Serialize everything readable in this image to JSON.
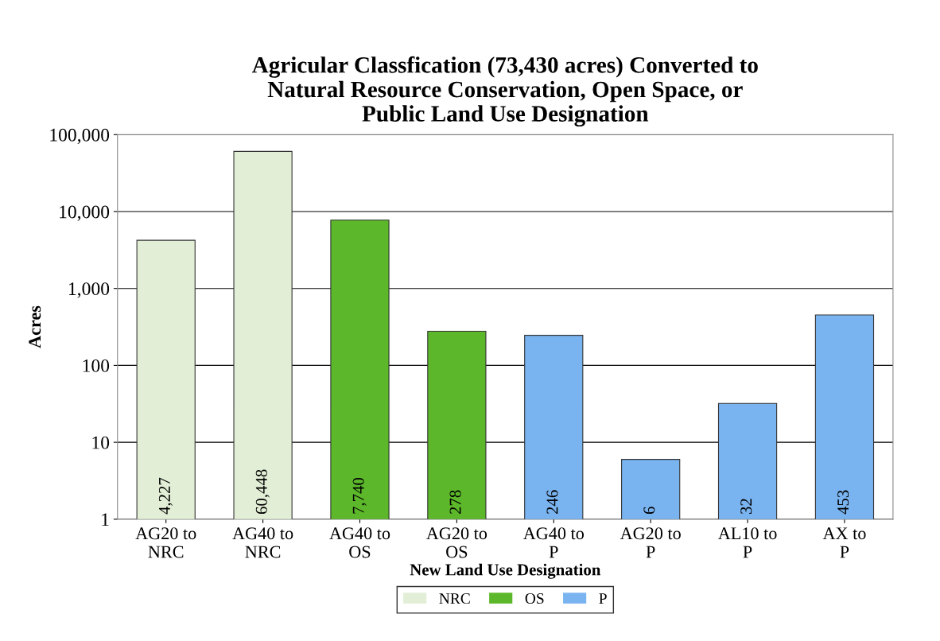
{
  "chart_data": {
    "type": "bar",
    "title": "Agricular Classfication (73,430 acres) Converted to\nNatural Resource Conservation, Open Space, or\nPublic Land Use Designation",
    "xlabel": "New Land Use Designation",
    "ylabel": "Acres",
    "categories": [
      "AG20 to\nNRC",
      "AG40 to\nNRC",
      "AG40 to\nOS",
      "AG20 to\nOS",
      "AG40 to\nP",
      "AG20 to\nP",
      "AL10 to\nP",
      "AX to\nP"
    ],
    "series": [
      {
        "name": "NRC",
        "color": "#e2efd6",
        "values": [
          4227,
          60448,
          null,
          null,
          null,
          null,
          null,
          null
        ],
        "value_labels": [
          "4,227",
          "60,448",
          null,
          null,
          null,
          null,
          null,
          null
        ]
      },
      {
        "name": "OS",
        "color": "#5cb82a",
        "values": [
          null,
          null,
          7740,
          278,
          null,
          null,
          null,
          null
        ],
        "value_labels": [
          null,
          null,
          "7,740",
          "278",
          null,
          null,
          null,
          null
        ]
      },
      {
        "name": "P",
        "color": "#7ab4f0",
        "values": [
          null,
          null,
          null,
          null,
          246,
          6,
          32,
          453
        ],
        "value_labels": [
          null,
          null,
          null,
          null,
          "246",
          "6",
          "32",
          "453"
        ]
      }
    ],
    "log": true,
    "ylim": [
      1,
      100000
    ],
    "yticks": [
      1,
      10,
      100,
      {
        "value": 1000,
        "label": "1,000"
      },
      {
        "value": 10000,
        "label": "10,000"
      },
      {
        "value": 100000,
        "label": "100,000"
      }
    ],
    "grid": "y",
    "legend": "bottom"
  }
}
